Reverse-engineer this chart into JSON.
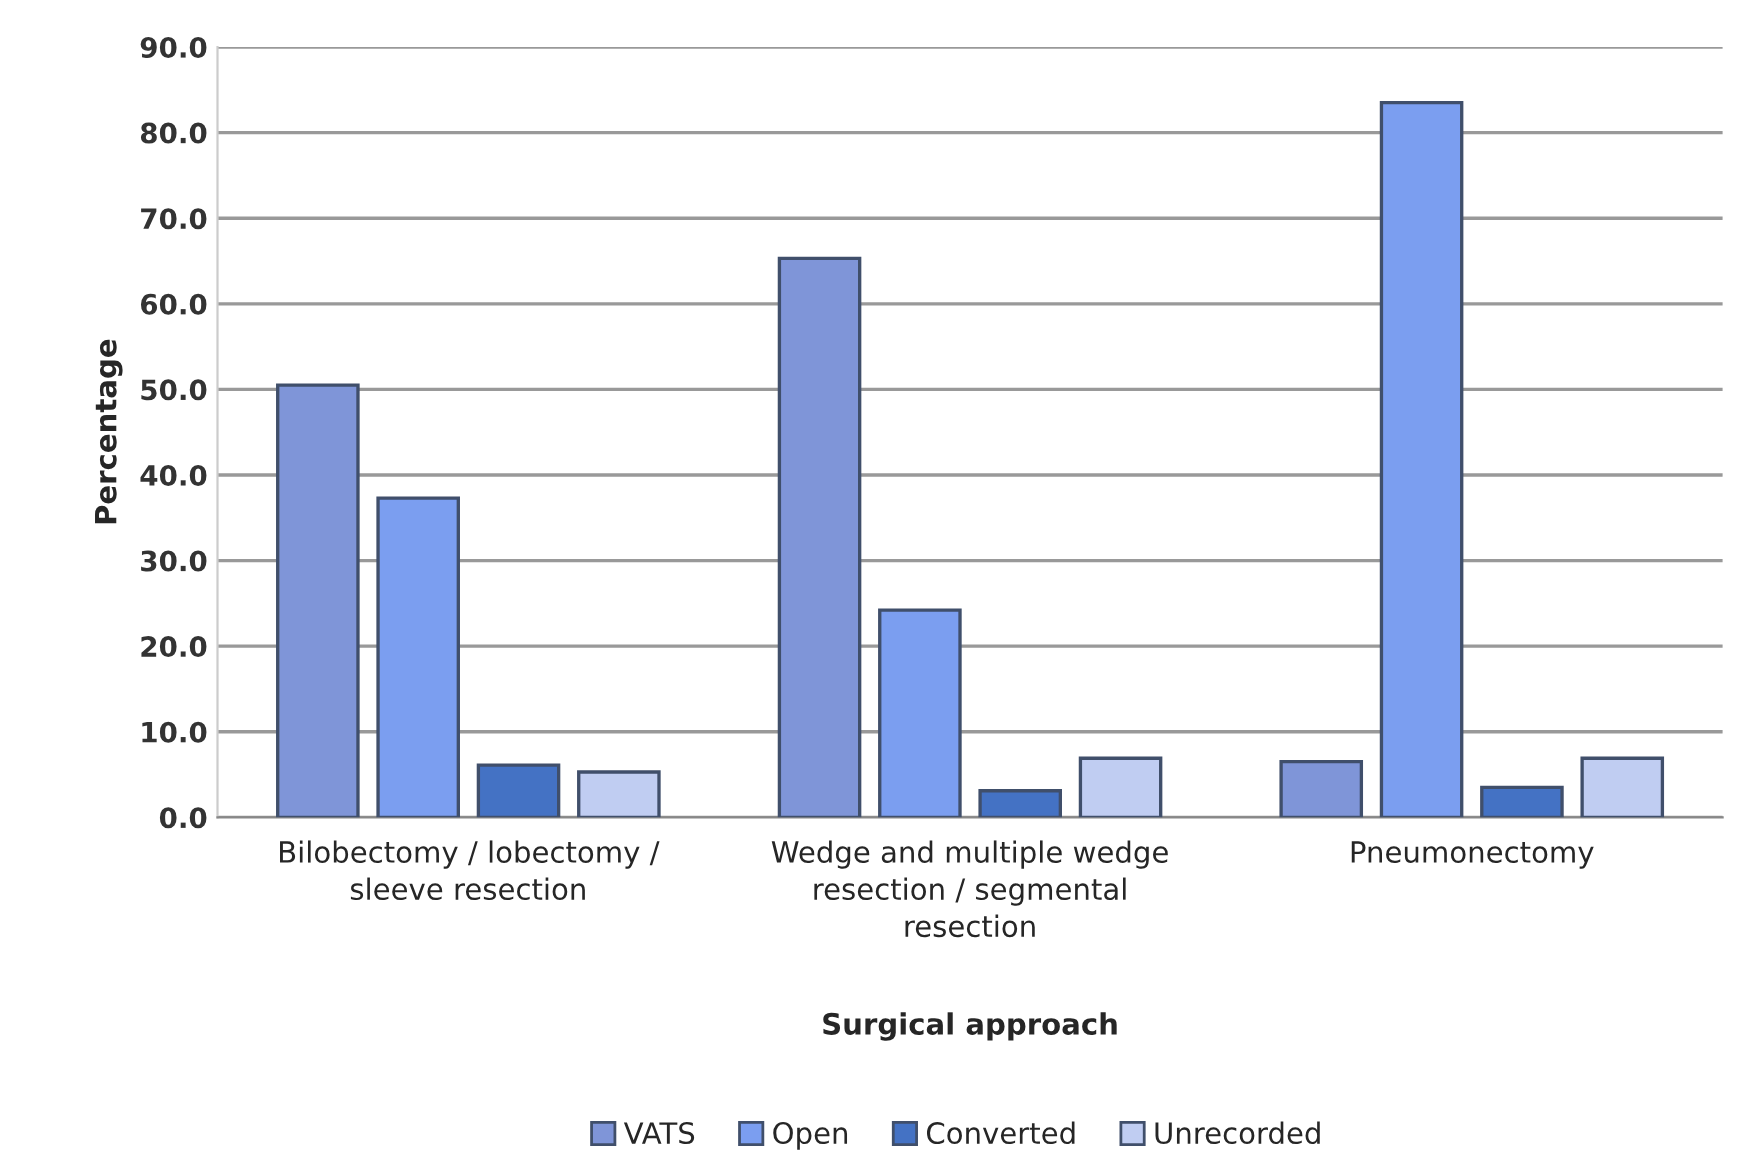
{
  "chart_data": {
    "type": "bar",
    "xlabel": "Surgical approach",
    "ylabel": "Percentage",
    "categories": [
      "Bilobectomy / lobectomy / sleeve resection",
      "Wedge and multiple wedge resection / segmental resection",
      "Pneumonectomy"
    ],
    "series": [
      {
        "name": "VATS",
        "color": "#7f95d8",
        "values": [
          50.5,
          65.3,
          6.5
        ]
      },
      {
        "name": "Open",
        "color": "#7b9ef0",
        "values": [
          37.3,
          24.2,
          83.5
        ]
      },
      {
        "name": "Converted",
        "color": "#4472c4",
        "values": [
          6.1,
          3.1,
          3.5
        ]
      },
      {
        "name": "Unrecorded",
        "color": "#c0cdf2",
        "values": [
          5.3,
          6.9,
          6.9
        ]
      }
    ],
    "ylim": [
      0,
      90
    ],
    "yticks": [
      {
        "value": 0,
        "label": "0.0"
      },
      {
        "value": 10,
        "label": "10.0"
      },
      {
        "value": 20,
        "label": "20.0"
      },
      {
        "value": 30,
        "label": "30.0"
      },
      {
        "value": 40,
        "label": "40.0"
      },
      {
        "value": 50,
        "label": "50.0"
      },
      {
        "value": 60,
        "label": "60.0"
      },
      {
        "value": 70,
        "label": "70.0"
      },
      {
        "value": 80,
        "label": "80.0"
      },
      {
        "value": 90,
        "label": "90.0"
      }
    ],
    "grid": "y",
    "legend": "bottom"
  }
}
